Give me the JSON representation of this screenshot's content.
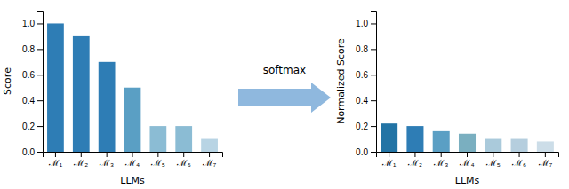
{
  "chart_data": [
    {
      "type": "bar",
      "categories": [
        "ℳ₁",
        "ℳ₂",
        "ℳ₃",
        "ℳ₄",
        "ℳ₅",
        "ℳ₆",
        "ℳ₇"
      ],
      "values": [
        1.0,
        0.9,
        0.7,
        0.5,
        0.2,
        0.2,
        0.1
      ],
      "colors": [
        "#2e7db5",
        "#2e7db5",
        "#2e7db5",
        "#5a9fc4",
        "#8bbcd4",
        "#8bbcd4",
        "#b8d4e4"
      ],
      "xlabel": "LLMs",
      "ylabel": "Score",
      "ylim": [
        0,
        1.1
      ],
      "yticks": [
        {
          "value": 0,
          "label": "0.0"
        },
        0.2,
        0.4,
        0.6,
        0.8,
        {
          "value": 1,
          "label": "1.0"
        }
      ]
    },
    {
      "type": "bar",
      "categories": [
        "ℳ₁",
        "ℳ₂",
        "ℳ₃",
        "ℳ₄",
        "ℳ₅",
        "ℳ₆",
        "ℳ₇"
      ],
      "values": [
        0.22,
        0.2,
        0.16,
        0.14,
        0.1,
        0.1,
        0.08
      ],
      "colors": [
        "#2274a5",
        "#2e7db5",
        "#5a9fc4",
        "#7aafc0",
        "#aacadb",
        "#b5cede",
        "#ccdde8"
      ],
      "xlabel": "LLMs",
      "ylabel": "Normalized Score",
      "ylim": [
        0,
        1.1
      ],
      "yticks": [
        {
          "value": 0,
          "label": "0.0"
        },
        0.2,
        0.4,
        0.6,
        0.8,
        {
          "value": 1,
          "label": "1.0"
        }
      ],
      "annotation": "softmax"
    }
  ]
}
